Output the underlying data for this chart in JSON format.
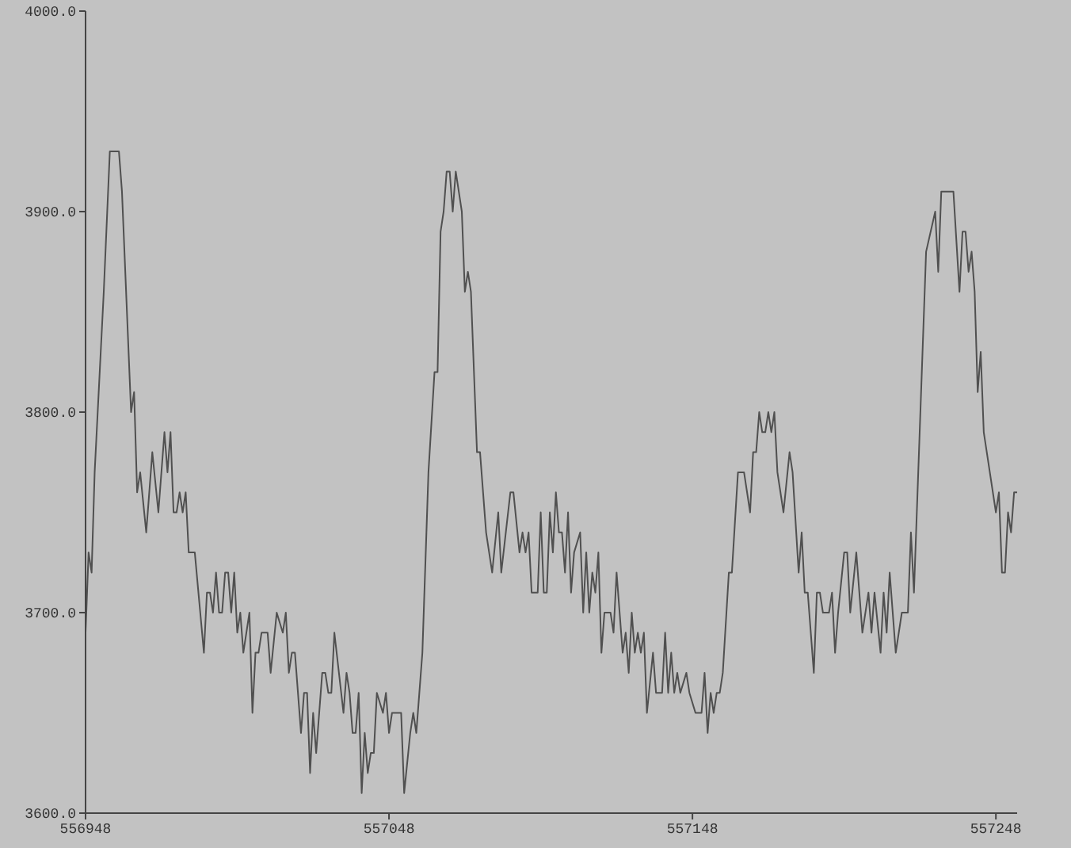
{
  "chart_data": {
    "type": "line",
    "color": "#505050",
    "x": [
      556948,
      556949,
      556950,
      556951,
      556954,
      556956,
      556959,
      556960,
      556963,
      556964,
      556965,
      556966,
      556968,
      556970,
      556972,
      556974,
      556975,
      556976,
      556977,
      556978,
      556979,
      556980,
      556981,
      556982,
      556984,
      556987,
      556988,
      556989,
      556990,
      556991,
      556992,
      556993,
      556994,
      556995,
      556996,
      556997,
      556998,
      556999,
      557000,
      557002,
      557003,
      557004,
      557005,
      557006,
      557008,
      557009,
      557011,
      557013,
      557014,
      557015,
      557016,
      557017,
      557019,
      557020,
      557021,
      557022,
      557023,
      557024,
      557026,
      557027,
      557028,
      557029,
      557030,
      557033,
      557034,
      557035,
      557036,
      557037,
      557038,
      557039,
      557040,
      557041,
      557042,
      557043,
      557044,
      557046,
      557047,
      557048,
      557049,
      557051,
      557052,
      557053,
      557055,
      557056,
      557057,
      557059,
      557061,
      557063,
      557064,
      557065,
      557066,
      557067,
      557068,
      557069,
      557070,
      557071,
      557072,
      557073,
      557074,
      557075,
      557077,
      557078,
      557080,
      557082,
      557084,
      557085,
      557088,
      557089,
      557091,
      557092,
      557093,
      557094,
      557095,
      557097,
      557098,
      557099,
      557100,
      557101,
      557102,
      557103,
      557104,
      557105,
      557106,
      557107,
      557108,
      557109,
      557111,
      557112,
      557113,
      557114,
      557115,
      557116,
      557117,
      557118,
      557119,
      557121,
      557122,
      557123,
      557125,
      557126,
      557127,
      557128,
      557129,
      557130,
      557131,
      557132,
      557133,
      557135,
      557136,
      557138,
      557139,
      557140,
      557141,
      557142,
      557143,
      557144,
      557146,
      557147,
      557149,
      557151,
      557152,
      557153,
      557154,
      557155,
      557156,
      557157,
      557158,
      557160,
      557161,
      557163,
      557165,
      557167,
      557168,
      557169,
      557170,
      557171,
      557172,
      557173,
      557174,
      557175,
      557176,
      557178,
      557180,
      557181,
      557183,
      557184,
      557185,
      557186,
      557188,
      557189,
      557190,
      557191,
      557193,
      557194,
      557195,
      557196,
      557198,
      557199,
      557200,
      557202,
      557204,
      557206,
      557207,
      557208,
      557210,
      557211,
      557212,
      557213,
      557215,
      557217,
      557219,
      557220,
      557221,
      557225,
      557228,
      557229,
      557230,
      557234,
      557236,
      557237,
      557238,
      557239,
      557240,
      557241,
      557242,
      557243,
      557244,
      557246,
      557248,
      557249,
      557250,
      557251,
      557252,
      557253,
      557254,
      557255
    ],
    "values": [
      3690,
      3730,
      3720,
      3770,
      3860,
      3930,
      3930,
      3910,
      3800,
      3810,
      3760,
      3770,
      3740,
      3780,
      3750,
      3790,
      3770,
      3790,
      3750,
      3750,
      3760,
      3750,
      3760,
      3730,
      3730,
      3680,
      3710,
      3710,
      3700,
      3720,
      3700,
      3700,
      3720,
      3720,
      3700,
      3720,
      3690,
      3700,
      3680,
      3700,
      3650,
      3680,
      3680,
      3690,
      3690,
      3670,
      3700,
      3690,
      3700,
      3670,
      3680,
      3680,
      3640,
      3660,
      3660,
      3620,
      3650,
      3630,
      3670,
      3670,
      3660,
      3660,
      3690,
      3650,
      3670,
      3660,
      3640,
      3640,
      3660,
      3610,
      3640,
      3620,
      3630,
      3630,
      3660,
      3650,
      3660,
      3640,
      3650,
      3650,
      3650,
      3610,
      3640,
      3650,
      3640,
      3680,
      3770,
      3820,
      3820,
      3890,
      3900,
      3920,
      3920,
      3900,
      3920,
      3910,
      3900,
      3860,
      3870,
      3860,
      3780,
      3780,
      3740,
      3720,
      3750,
      3720,
      3760,
      3760,
      3730,
      3740,
      3730,
      3740,
      3710,
      3710,
      3750,
      3710,
      3710,
      3750,
      3730,
      3760,
      3740,
      3740,
      3720,
      3750,
      3710,
      3730,
      3740,
      3700,
      3730,
      3700,
      3720,
      3710,
      3730,
      3680,
      3700,
      3700,
      3690,
      3720,
      3680,
      3690,
      3670,
      3700,
      3680,
      3690,
      3680,
      3690,
      3650,
      3680,
      3660,
      3660,
      3690,
      3660,
      3680,
      3660,
      3670,
      3660,
      3670,
      3660,
      3650,
      3650,
      3670,
      3640,
      3660,
      3650,
      3660,
      3660,
      3670,
      3720,
      3720,
      3770,
      3770,
      3750,
      3780,
      3780,
      3800,
      3790,
      3790,
      3800,
      3790,
      3800,
      3770,
      3750,
      3780,
      3770,
      3720,
      3740,
      3710,
      3710,
      3670,
      3710,
      3710,
      3700,
      3700,
      3710,
      3680,
      3700,
      3730,
      3730,
      3700,
      3730,
      3690,
      3710,
      3690,
      3710,
      3680,
      3710,
      3690,
      3720,
      3680,
      3700,
      3700,
      3740,
      3710,
      3880,
      3900,
      3870,
      3910,
      3910,
      3860,
      3890,
      3890,
      3870,
      3880,
      3860,
      3810,
      3830,
      3790,
      3770,
      3750,
      3760,
      3720,
      3720,
      3750,
      3740,
      3760,
      3760
    ],
    "xlim": [
      556948,
      557255
    ],
    "xticks": [
      556948,
      557048,
      557148,
      557248
    ],
    "ylim": [
      3600,
      4000
    ],
    "yticks": [
      {
        "value": 3600,
        "label": "3600.0"
      },
      {
        "value": 3700,
        "label": "3700.0"
      },
      {
        "value": 3800,
        "label": "3800.0"
      },
      {
        "value": 3900,
        "label": "3900.0"
      },
      {
        "value": 4000,
        "label": "4000.0"
      }
    ]
  }
}
